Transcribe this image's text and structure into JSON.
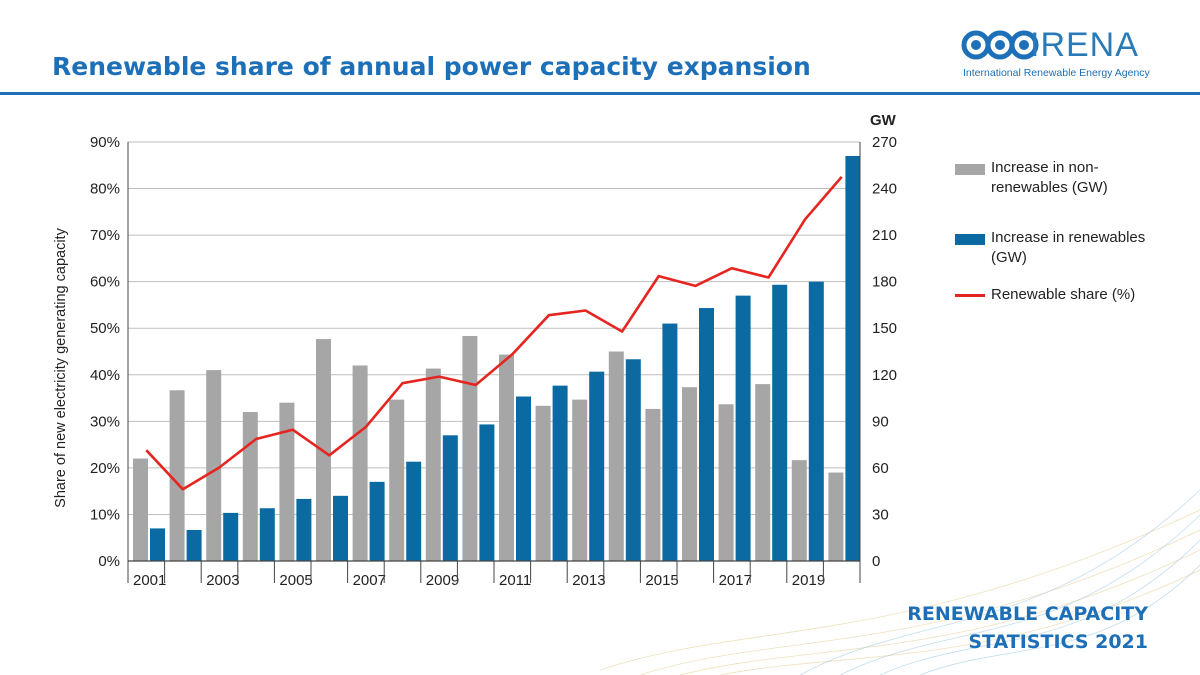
{
  "header": {
    "title": "Renewable share of annual power capacity expansion",
    "logo_text": "IRENA",
    "logo_subtitle": "International Renewable Energy Agency"
  },
  "footer": {
    "line1": "RENEWABLE CAPACITY",
    "line2": "STATISTICS 2021"
  },
  "colors": {
    "non_renewable": "#a6a6a6",
    "renewable": "#0b6aa1",
    "share_line": "#e52520",
    "brand": "#1d70b7"
  },
  "chart_data": {
    "type": "bar",
    "title": "Renewable share of annual power capacity expansion",
    "ylabel": "Share of new electricity generating capacity",
    "y2label": "GW",
    "ylim": [
      0,
      90
    ],
    "y2lim": [
      0,
      270
    ],
    "yticks": [
      "0%",
      "10%",
      "20%",
      "30%",
      "40%",
      "50%",
      "60%",
      "70%",
      "80%",
      "90%"
    ],
    "y2ticks": [
      "0",
      "30",
      "60",
      "90",
      "120",
      "150",
      "180",
      "210",
      "240",
      "270"
    ],
    "categories": [
      "2001",
      "2002",
      "2003",
      "2004",
      "2005",
      "2006",
      "2007",
      "2008",
      "2009",
      "2010",
      "2011",
      "2012",
      "2013",
      "2014",
      "2015",
      "2016",
      "2017",
      "2018",
      "2019",
      "2020"
    ],
    "xtick_labels": [
      "2001",
      "2003",
      "2005",
      "2007",
      "2009",
      "2011",
      "2013",
      "2015",
      "2017",
      "2019"
    ],
    "legend_placement": "right",
    "series": [
      {
        "name": "Increase in non-renewables (GW)",
        "axis": "right",
        "values": [
          66,
          110,
          123,
          96,
          102,
          143,
          126,
          104,
          124,
          145,
          133,
          100,
          104,
          135,
          98,
          112,
          101,
          114,
          65,
          57
        ]
      },
      {
        "name": "Increase in renewables (GW)",
        "axis": "right",
        "values": [
          21,
          20,
          31,
          34,
          40,
          42,
          51,
          64,
          81,
          88,
          106,
          113,
          122,
          130,
          153,
          163,
          171,
          178,
          180,
          261
        ]
      },
      {
        "name": "Renewable share (%)",
        "type": "line",
        "axis": "left",
        "values": [
          23.8,
          15.4,
          20.1,
          26.2,
          28.2,
          22.7,
          28.8,
          38.2,
          39.6,
          37.8,
          44.4,
          52.8,
          53.8,
          49.3,
          61.2,
          59.1,
          62.9,
          60.9,
          73.4,
          82.5
        ]
      }
    ]
  }
}
